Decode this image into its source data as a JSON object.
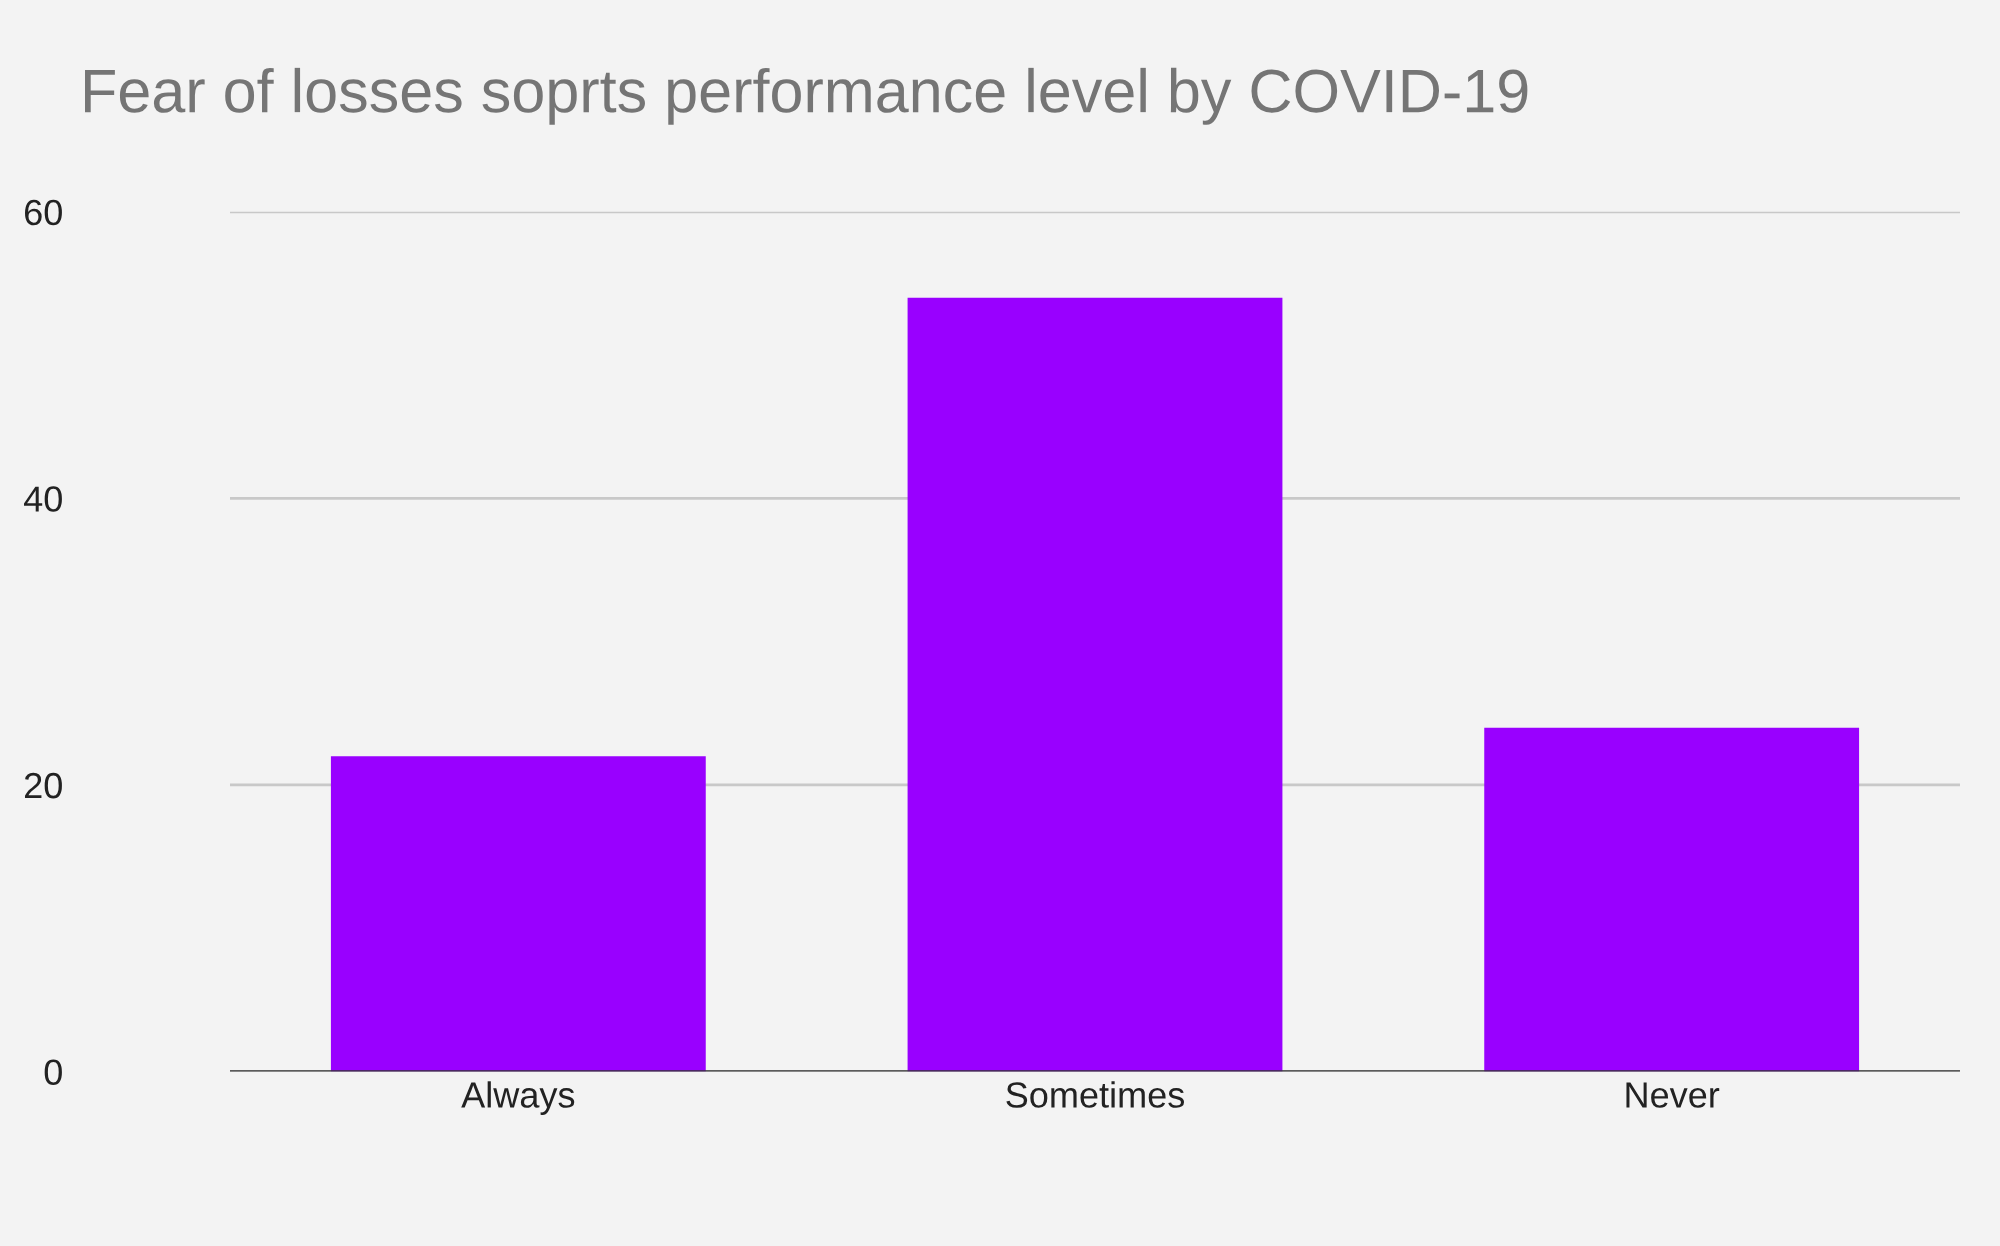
{
  "chart_data": {
    "type": "bar",
    "title": "Fear of losses soprts performance level by COVID-19",
    "categories": [
      "Always",
      "Sometimes",
      "Never"
    ],
    "values": [
      22,
      54,
      24
    ],
    "color": "#9900ff",
    "ylim": [
      0,
      60
    ],
    "yticks": [
      0,
      20,
      40,
      60
    ],
    "grid": "y"
  }
}
